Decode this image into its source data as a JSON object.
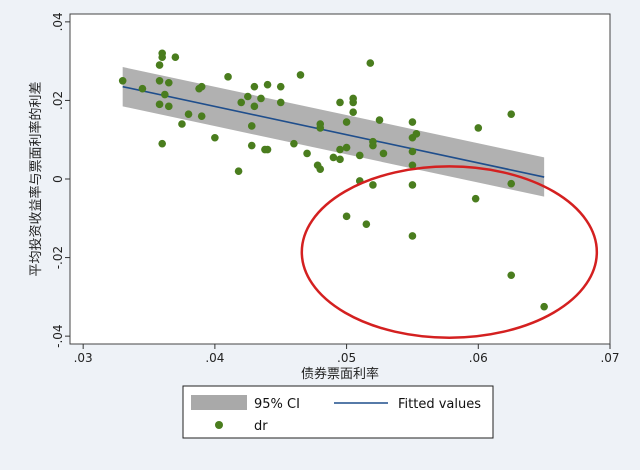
{
  "chart_data": {
    "type": "scatter",
    "xlabel": "债券票面利率",
    "ylabel": "平均投资收益率与票面利率的利差",
    "xlim": [
      0.029,
      0.07
    ],
    "ylim": [
      -0.042,
      0.042
    ],
    "x_ticks": [
      0.03,
      0.04,
      0.05,
      0.06,
      0.07
    ],
    "x_tick_labels": [
      ".03",
      ".04",
      ".05",
      ".06",
      ".07"
    ],
    "y_ticks": [
      -0.04,
      -0.02,
      0,
      0.02,
      0.04
    ],
    "y_tick_labels": [
      "-.04",
      "-.02",
      "0",
      ".02",
      ".04"
    ],
    "legend_position": "bottom",
    "colors": {
      "points": "#4a7d1e",
      "fit_line": "#1f4e8c",
      "ci_band": "#a9a9a9",
      "highlight_ellipse": "#d42020",
      "plot_background": "#ffffff",
      "outer_background": "#eef2f7"
    },
    "fit": {
      "x": [
        0.033,
        0.065
      ],
      "y": [
        0.0235,
        0.0005
      ]
    },
    "ci_band": {
      "x": [
        0.033,
        0.065
      ],
      "upper": [
        0.0285,
        0.0055
      ],
      "lower": [
        0.0185,
        -0.0045
      ]
    },
    "highlight": {
      "cx": 0.0578,
      "cy": -0.0186,
      "rx": 0.0112,
      "ry": 0.0218
    },
    "series": [
      {
        "name": "dr",
        "points": [
          [
            0.033,
            0.025
          ],
          [
            0.0345,
            0.023
          ],
          [
            0.0358,
            0.029
          ],
          [
            0.036,
            0.031
          ],
          [
            0.036,
            0.032
          ],
          [
            0.0358,
            0.025
          ],
          [
            0.0362,
            0.0215
          ],
          [
            0.0365,
            0.0245
          ],
          [
            0.0358,
            0.019
          ],
          [
            0.0365,
            0.0185
          ],
          [
            0.036,
            0.009
          ],
          [
            0.037,
            0.031
          ],
          [
            0.0375,
            0.014
          ],
          [
            0.038,
            0.0165
          ],
          [
            0.0388,
            0.023
          ],
          [
            0.039,
            0.0235
          ],
          [
            0.039,
            0.016
          ],
          [
            0.04,
            0.0105
          ],
          [
            0.041,
            0.026
          ],
          [
            0.042,
            0.0195
          ],
          [
            0.0418,
            0.002
          ],
          [
            0.0425,
            0.021
          ],
          [
            0.043,
            0.0235
          ],
          [
            0.043,
            0.0185
          ],
          [
            0.0428,
            0.0135
          ],
          [
            0.0428,
            0.0085
          ],
          [
            0.0435,
            0.0205
          ],
          [
            0.044,
            0.024
          ],
          [
            0.044,
            0.0075
          ],
          [
            0.0438,
            0.0075
          ],
          [
            0.045,
            0.0235
          ],
          [
            0.045,
            0.0195
          ],
          [
            0.046,
            0.009
          ],
          [
            0.0465,
            0.0265
          ],
          [
            0.047,
            0.0065
          ],
          [
            0.048,
            0.013
          ],
          [
            0.048,
            0.014
          ],
          [
            0.0478,
            0.0035
          ],
          [
            0.048,
            0.0025
          ],
          [
            0.049,
            0.0055
          ],
          [
            0.0495,
            0.0075
          ],
          [
            0.0495,
            0.0195
          ],
          [
            0.0495,
            0.005
          ],
          [
            0.05,
            0.0145
          ],
          [
            0.05,
            0.008
          ],
          [
            0.0505,
            0.0195
          ],
          [
            0.0505,
            0.0205
          ],
          [
            0.0505,
            0.017
          ],
          [
            0.051,
            0.006
          ],
          [
            0.051,
            -0.0005
          ],
          [
            0.0518,
            0.0295
          ],
          [
            0.052,
            0.0095
          ],
          [
            0.052,
            0.0085
          ],
          [
            0.0525,
            0.015
          ],
          [
            0.0528,
            0.0065
          ],
          [
            0.055,
            0.0145
          ],
          [
            0.055,
            0.0105
          ],
          [
            0.055,
            0.007
          ],
          [
            0.055,
            0.0035
          ],
          [
            0.0553,
            0.0115
          ],
          [
            0.06,
            0.013
          ],
          [
            0.0625,
            0.0165
          ],
          [
            0.05,
            -0.0095
          ],
          [
            0.0515,
            -0.0115
          ],
          [
            0.052,
            -0.0015
          ],
          [
            0.055,
            -0.0015
          ],
          [
            0.055,
            -0.0145
          ],
          [
            0.0598,
            -0.005
          ],
          [
            0.0625,
            -0.0012
          ],
          [
            0.0625,
            -0.0245
          ],
          [
            0.065,
            -0.0325
          ]
        ]
      }
    ],
    "legend": [
      {
        "type": "band",
        "label": "95% CI"
      },
      {
        "type": "line",
        "label": "Fitted values"
      },
      {
        "type": "marker",
        "label": "dr"
      }
    ]
  }
}
